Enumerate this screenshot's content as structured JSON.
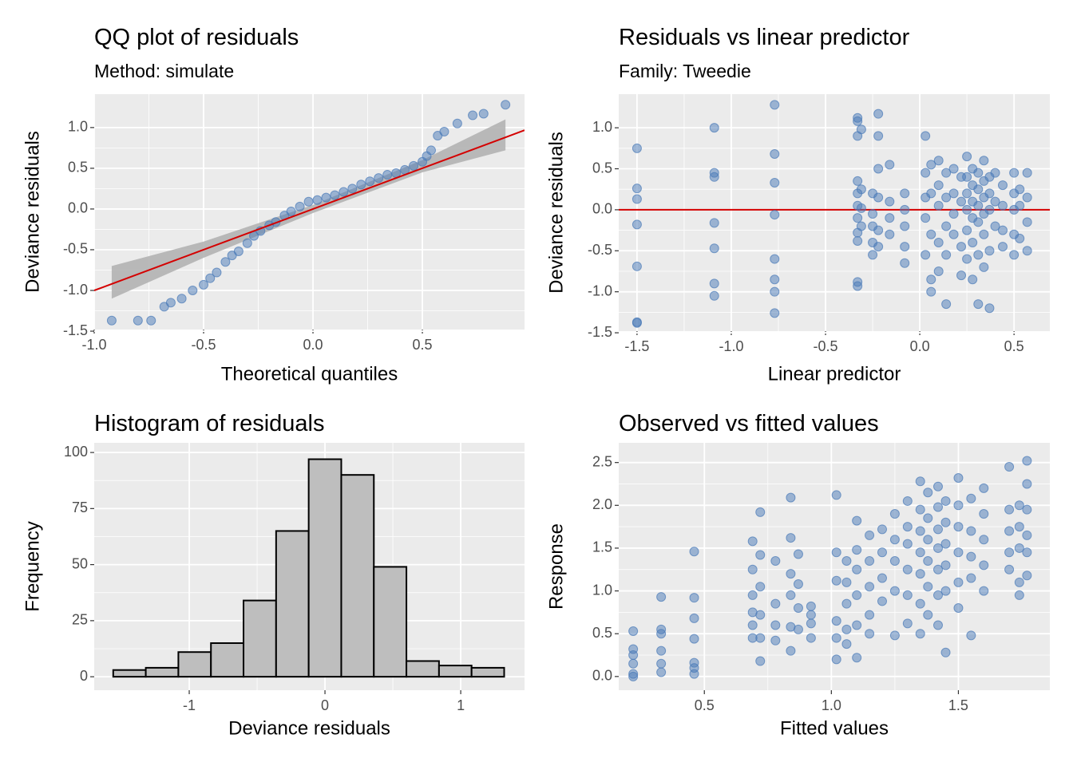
{
  "chart_data": [
    {
      "type": "qq",
      "title": "QQ plot of residuals",
      "subtitle": "Method: simulate",
      "xlabel": "Theoretical quantiles",
      "ylabel": "Deviance residuals",
      "xlim": [
        -1.0,
        0.967
      ],
      "ylim": [
        -1.48,
        1.41
      ],
      "xticks": [
        {
          "value": -1,
          "label": "-1.0"
        },
        -0.5,
        {
          "value": 0,
          "label": "0.0"
        },
        0.5
      ],
      "yticks": [
        -1.5,
        {
          "value": -1,
          "label": "-1.0"
        },
        -0.5,
        {
          "value": 0,
          "label": "0.0"
        },
        0.5,
        {
          "value": 1,
          "label": "1.0"
        }
      ],
      "color": "#4a7ab8",
      "line": {
        "slope": 1,
        "intercept": 0,
        "color": "#d40000"
      },
      "band": {
        "x": [
          -0.92,
          -0.5,
          0,
          0.5,
          0.88
        ],
        "lower": [
          -1.1,
          -0.6,
          -0.05,
          0.45,
          0.72
        ],
        "upper": [
          -0.7,
          -0.4,
          0.05,
          0.6,
          1.1
        ],
        "color": "#b3b3b3"
      },
      "x": [
        -0.92,
        -0.8,
        -0.74,
        -0.68,
        -0.65,
        -0.6,
        -0.55,
        -0.5,
        -0.47,
        -0.44,
        -0.4,
        -0.37,
        -0.34,
        -0.3,
        -0.27,
        -0.24,
        -0.2,
        -0.17,
        -0.13,
        -0.1,
        -0.06,
        -0.02,
        0.02,
        0.06,
        0.1,
        0.14,
        0.18,
        0.22,
        0.26,
        0.3,
        0.34,
        0.38,
        0.42,
        0.46,
        0.5,
        0.52,
        0.54,
        0.57,
        0.6,
        0.66,
        0.73,
        0.78,
        0.88
      ],
      "y": [
        -1.37,
        -1.37,
        -1.37,
        -1.2,
        -1.15,
        -1.1,
        -1.0,
        -0.93,
        -0.85,
        -0.78,
        -0.65,
        -0.57,
        -0.52,
        -0.42,
        -0.33,
        -0.27,
        -0.2,
        -0.16,
        -0.08,
        -0.03,
        0.03,
        0.09,
        0.11,
        0.14,
        0.17,
        0.21,
        0.25,
        0.3,
        0.34,
        0.38,
        0.42,
        0.44,
        0.48,
        0.53,
        0.58,
        0.65,
        0.72,
        0.9,
        0.95,
        1.05,
        1.15,
        1.17,
        1.28
      ]
    },
    {
      "type": "scatter",
      "title": "Residuals vs linear predictor",
      "subtitle": "Family: Tweedie",
      "xlabel": "Linear predictor",
      "ylabel": "Deviance residuals",
      "xlim": [
        -1.597,
        0.69
      ],
      "ylim": [
        -1.48,
        1.41
      ],
      "xticks": [
        -1.5,
        {
          "value": -1,
          "label": "-1.0"
        },
        -0.5,
        {
          "value": 0,
          "label": "0.0"
        },
        0.5
      ],
      "yticks": [
        -1.5,
        {
          "value": -1,
          "label": "-1.0"
        },
        -0.5,
        {
          "value": 0,
          "label": "0.0"
        },
        0.5,
        {
          "value": 1,
          "label": "1.0"
        }
      ],
      "color": "#4a7ab8",
      "hline": 0,
      "hline_color": "#d40000",
      "x": [
        -1.5,
        -1.5,
        -1.5,
        -1.5,
        -1.5,
        -1.5,
        -1.5,
        -1.09,
        -1.09,
        -1.09,
        -1.09,
        -1.09,
        -1.09,
        -1.09,
        -0.77,
        -0.77,
        -0.77,
        -0.77,
        -0.77,
        -0.77,
        -0.77,
        -0.77,
        -0.33,
        -0.33,
        -0.33,
        -0.33,
        -0.33,
        -0.33,
        -0.33,
        -0.33,
        -0.33,
        -0.33,
        -0.33,
        -0.31,
        -0.31,
        -0.31,
        -0.31,
        -0.25,
        -0.25,
        -0.25,
        -0.25,
        -0.25,
        -0.22,
        -0.22,
        -0.22,
        -0.22,
        -0.22,
        -0.22,
        -0.16,
        -0.16,
        -0.16,
        -0.16,
        -0.08,
        -0.08,
        -0.08,
        -0.08,
        -0.08,
        0.03,
        0.03,
        0.03,
        0.03,
        0.03,
        0.06,
        0.06,
        0.06,
        0.06,
        0.06,
        0.1,
        0.1,
        0.1,
        0.1,
        0.1,
        0.14,
        0.14,
        0.14,
        0.14,
        0.14,
        0.18,
        0.18,
        0.18,
        0.18,
        0.22,
        0.22,
        0.22,
        0.22,
        0.25,
        0.25,
        0.25,
        0.25,
        0.25,
        0.25,
        0.28,
        0.28,
        0.28,
        0.28,
        0.28,
        0.28,
        0.31,
        0.31,
        0.31,
        0.31,
        0.31,
        0.31,
        0.34,
        0.34,
        0.34,
        0.34,
        0.34,
        0.34,
        0.37,
        0.37,
        0.37,
        0.37,
        0.37,
        0.4,
        0.4,
        0.4,
        0.44,
        0.44,
        0.44,
        0.44,
        0.5,
        0.5,
        0.5,
        0.5,
        0.5,
        0.53,
        0.53,
        0.53,
        0.57,
        0.57,
        0.57,
        0.57
      ],
      "y": [
        0.75,
        0.26,
        0.13,
        -0.18,
        -0.69,
        -1.37,
        -1.38,
        1.0,
        0.45,
        0.4,
        -0.16,
        -0.47,
        -0.9,
        -1.05,
        1.28,
        0.68,
        0.33,
        -0.06,
        -0.6,
        -0.85,
        -1.0,
        -1.26,
        1.12,
        1.08,
        0.9,
        0.35,
        0.2,
        0.05,
        -0.1,
        -0.28,
        -0.38,
        -0.88,
        -0.93,
        0.98,
        0.25,
        -0.2,
        0.02,
        0.2,
        -0.05,
        -0.2,
        -0.55,
        -0.4,
        1.17,
        0.9,
        0.5,
        0.15,
        -0.25,
        -0.45,
        0.55,
        0.1,
        -0.1,
        -0.3,
        0.2,
        0.0,
        -0.2,
        -0.45,
        -0.65,
        0.9,
        0.45,
        0.15,
        -0.1,
        -0.55,
        0.55,
        0.2,
        -0.3,
        -0.85,
        -1.0,
        0.6,
        0.3,
        0.05,
        -0.4,
        -0.75,
        0.45,
        0.15,
        -0.2,
        -0.55,
        -1.15,
        0.5,
        0.2,
        -0.05,
        -0.3,
        0.4,
        0.1,
        -0.45,
        -0.8,
        0.65,
        0.4,
        0.2,
        0.0,
        -0.25,
        -0.6,
        0.5,
        0.3,
        0.1,
        -0.1,
        -0.4,
        -0.85,
        0.45,
        0.25,
        0.05,
        -0.15,
        -0.55,
        -1.15,
        0.6,
        0.35,
        0.15,
        -0.05,
        -0.3,
        -0.7,
        0.4,
        0.2,
        0.0,
        -0.5,
        -1.2,
        0.45,
        0.1,
        -0.2,
        0.3,
        0.05,
        -0.25,
        -0.45,
        0.45,
        0.2,
        0.0,
        -0.3,
        -0.55,
        0.25,
        0.05,
        -0.35,
        0.45,
        0.15,
        -0.15,
        -0.5
      ]
    },
    {
      "type": "histogram",
      "title": "Histogram of residuals",
      "xlabel": "Deviance residuals",
      "ylabel": "Frequency",
      "xlim": [
        -1.7,
        1.47
      ],
      "ylim": [
        -6,
        104.3
      ],
      "xticks": [
        -1,
        0,
        1
      ],
      "yticks": [
        0,
        25,
        50,
        75,
        100
      ],
      "color": "#bebebe",
      "bins": [
        -1.56,
        -1.32,
        -1.08,
        -0.84,
        -0.6,
        -0.36,
        -0.12,
        0.12,
        0.36,
        0.6,
        0.84,
        1.08,
        1.32
      ],
      "counts": [
        3,
        4,
        11,
        15,
        34,
        65,
        97,
        90,
        49,
        7,
        5,
        4
      ]
    },
    {
      "type": "scatter",
      "title": "Observed vs fitted values",
      "xlabel": "Fitted values",
      "ylabel": "Response",
      "xlim": [
        0.163,
        1.86
      ],
      "ylim": [
        -0.16,
        2.73
      ],
      "xticks": [
        0.5,
        {
          "value": 1,
          "label": "1.0"
        },
        1.5
      ],
      "yticks": [
        {
          "value": 0,
          "label": "0.0"
        },
        0.5,
        {
          "value": 1,
          "label": "1.0"
        },
        1.5,
        {
          "value": 2,
          "label": "2.0"
        },
        2.5
      ],
      "color": "#4a7ab8",
      "x": [
        0.22,
        0.22,
        0.22,
        0.22,
        0.22,
        0.22,
        0.33,
        0.33,
        0.33,
        0.33,
        0.33,
        0.33,
        0.46,
        0.46,
        0.46,
        0.46,
        0.46,
        0.46,
        0.46,
        0.69,
        0.69,
        0.69,
        0.69,
        0.69,
        0.69,
        0.72,
        0.72,
        0.72,
        0.72,
        0.72,
        0.72,
        0.78,
        0.78,
        0.78,
        0.78,
        0.84,
        0.84,
        0.84,
        0.84,
        0.84,
        0.84,
        0.87,
        0.87,
        0.87,
        0.87,
        0.92,
        0.92,
        0.92,
        0.92,
        1.02,
        1.02,
        1.02,
        1.02,
        1.02,
        1.02,
        1.06,
        1.06,
        1.06,
        1.06,
        1.06,
        1.1,
        1.1,
        1.1,
        1.1,
        1.1,
        1.1,
        1.15,
        1.15,
        1.15,
        1.15,
        1.15,
        1.2,
        1.2,
        1.2,
        1.2,
        1.25,
        1.25,
        1.25,
        1.25,
        1.25,
        1.3,
        1.3,
        1.3,
        1.3,
        1.3,
        1.3,
        1.35,
        1.35,
        1.35,
        1.35,
        1.35,
        1.35,
        1.35,
        1.38,
        1.38,
        1.38,
        1.38,
        1.38,
        1.38,
        1.42,
        1.42,
        1.42,
        1.42,
        1.42,
        1.42,
        1.42,
        1.45,
        1.45,
        1.45,
        1.45,
        1.45,
        1.45,
        1.5,
        1.5,
        1.5,
        1.5,
        1.5,
        1.5,
        1.55,
        1.55,
        1.55,
        1.55,
        1.55,
        1.6,
        1.6,
        1.6,
        1.6,
        1.6,
        1.7,
        1.7,
        1.7,
        1.7,
        1.7,
        1.74,
        1.74,
        1.74,
        1.74,
        1.74,
        1.77,
        1.77,
        1.77,
        1.77,
        1.77,
        1.77
      ],
      "y": [
        0.53,
        0.32,
        0.25,
        0.15,
        0.03,
        0.0,
        0.93,
        0.55,
        0.5,
        0.3,
        0.15,
        0.05,
        1.46,
        0.92,
        0.68,
        0.44,
        0.16,
        0.1,
        0.03,
        1.58,
        1.25,
        0.95,
        0.75,
        0.6,
        0.45,
        1.92,
        1.42,
        1.05,
        0.72,
        0.45,
        0.18,
        1.35,
        0.85,
        0.6,
        0.42,
        2.09,
        1.62,
        1.2,
        0.95,
        0.58,
        0.3,
        1.43,
        1.08,
        0.8,
        0.55,
        0.82,
        0.72,
        0.62,
        0.45,
        2.12,
        1.45,
        1.12,
        0.65,
        0.45,
        0.2,
        1.35,
        1.1,
        0.85,
        0.55,
        0.38,
        1.82,
        1.48,
        1.25,
        0.95,
        0.6,
        0.22,
        1.65,
        1.35,
        1.05,
        0.72,
        0.5,
        1.72,
        1.45,
        1.15,
        0.88,
        1.9,
        1.6,
        1.35,
        1.0,
        0.48,
        2.05,
        1.75,
        1.55,
        1.25,
        0.95,
        0.62,
        2.28,
        1.95,
        1.7,
        1.45,
        1.2,
        0.85,
        0.5,
        2.15,
        1.85,
        1.6,
        1.35,
        1.05,
        0.72,
        2.22,
        1.98,
        1.72,
        1.5,
        1.25,
        0.95,
        0.6,
        2.05,
        1.8,
        1.55,
        1.3,
        1.0,
        0.28,
        2.32,
        2.0,
        1.75,
        1.45,
        1.1,
        0.8,
        2.08,
        1.7,
        1.4,
        1.15,
        0.48,
        2.2,
        1.9,
        1.6,
        1.3,
        1.0,
        2.45,
        1.95,
        1.7,
        1.45,
        1.25,
        2.0,
        1.75,
        1.5,
        1.1,
        0.95,
        2.52,
        2.25,
        1.95,
        1.65,
        1.45,
        1.18
      ]
    }
  ]
}
